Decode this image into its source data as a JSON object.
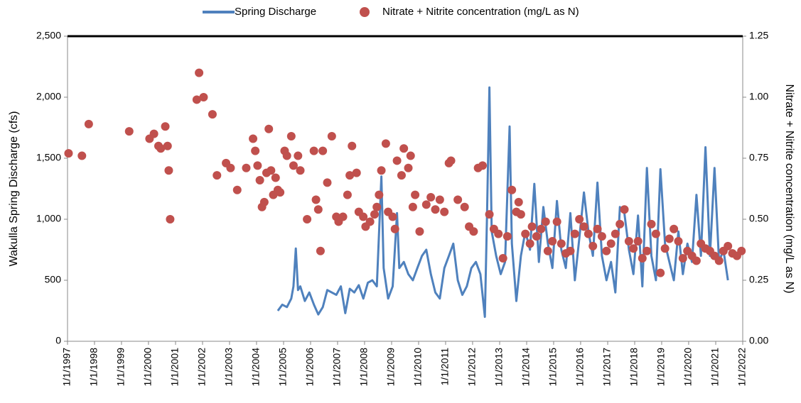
{
  "chart_data": {
    "type": "line",
    "y_label": "Wakulla Spring Discharge (cfs)",
    "y2_label": "Nitrate + Nitrite concentration (mg/L as N)",
    "xlim": [
      "1997-01-01",
      "2022-01-01"
    ],
    "xticks": [
      {
        "value": "1997-01-01",
        "label": "1/1/1997"
      },
      {
        "value": "1998-01-01",
        "label": "1/1/1998"
      },
      {
        "value": "1999-01-01",
        "label": "1/1/1999"
      },
      {
        "value": "2000-01-01",
        "label": "1/1/2000"
      },
      {
        "value": "2001-01-01",
        "label": "1/1/2001"
      },
      {
        "value": "2002-01-01",
        "label": "1/1/2002"
      },
      {
        "value": "2003-01-01",
        "label": "1/1/2003"
      },
      {
        "value": "2004-01-01",
        "label": "1/1/2004"
      },
      {
        "value": "2005-01-01",
        "label": "1/1/2005"
      },
      {
        "value": "2006-01-01",
        "label": "1/1/2006"
      },
      {
        "value": "2007-01-01",
        "label": "1/1/2007"
      },
      {
        "value": "2008-01-01",
        "label": "1/1/2008"
      },
      {
        "value": "2009-01-01",
        "label": "1/1/2009"
      },
      {
        "value": "2010-01-01",
        "label": "1/1/2010"
      },
      {
        "value": "2011-01-01",
        "label": "1/1/2011"
      },
      {
        "value": "2012-01-01",
        "label": "1/1/2012"
      },
      {
        "value": "2013-01-01",
        "label": "1/1/2013"
      },
      {
        "value": "2014-01-01",
        "label": "1/1/2014"
      },
      {
        "value": "2015-01-01",
        "label": "1/1/2015"
      },
      {
        "value": "2016-01-01",
        "label": "1/1/2016"
      },
      {
        "value": "2017-01-01",
        "label": "1/1/2017"
      },
      {
        "value": "2018-01-01",
        "label": "1/1/2018"
      },
      {
        "value": "2019-01-01",
        "label": "1/1/2019"
      },
      {
        "value": "2020-01-01",
        "label": "1/1/2020"
      },
      {
        "value": "2021-01-01",
        "label": "1/1/2021"
      },
      {
        "value": "2022-01-01",
        "label": "1/1/2022"
      }
    ],
    "ylim": [
      0,
      2500
    ],
    "yticks": [
      0,
      500,
      {
        "value": 1000,
        "label": "1,000"
      },
      {
        "value": 1500,
        "label": "1,500"
      },
      {
        "value": 2000,
        "label": "2,000"
      },
      {
        "value": 2500,
        "label": "2,500"
      }
    ],
    "y2lim": [
      0,
      1.25
    ],
    "y2ticks": [
      {
        "value": 0,
        "label": "0.00"
      },
      {
        "value": 0.25,
        "label": "0.25"
      },
      {
        "value": 0.5,
        "label": "0.50"
      },
      {
        "value": 0.75,
        "label": "0.75"
      },
      {
        "value": 1,
        "label": "1.00"
      },
      {
        "value": 1.25,
        "label": "1.25"
      }
    ],
    "grid": false,
    "series": [
      {
        "name": "Spring Discharge",
        "color": "#4f81bd",
        "type": "line",
        "x": [
          "2004-10-15",
          "2004-12-15",
          "2005-02-15",
          "2005-04-15",
          "2005-05-15",
          "2005-06-15",
          "2005-07-15",
          "2005-08-15",
          "2005-10-15",
          "2005-12-15",
          "2006-02-15",
          "2006-04-15",
          "2006-06-15",
          "2006-08-15",
          "2006-10-15",
          "2006-12-15",
          "2007-02-15",
          "2007-04-15",
          "2007-06-15",
          "2007-08-15",
          "2007-10-15",
          "2007-12-15",
          "2008-02-15",
          "2008-04-15",
          "2008-06-15",
          "2008-08-15",
          "2008-09-15",
          "2008-11-15",
          "2009-01-15",
          "2009-03-15",
          "2009-04-15",
          "2009-06-15",
          "2009-08-15",
          "2009-10-15",
          "2009-12-15",
          "2010-02-15",
          "2010-04-15",
          "2010-06-15",
          "2010-08-15",
          "2010-10-15",
          "2010-12-15",
          "2011-02-15",
          "2011-04-15",
          "2011-06-15",
          "2011-08-15",
          "2011-10-15",
          "2011-12-15",
          "2012-02-15",
          "2012-04-15",
          "2012-06-15",
          "2012-07-15",
          "2012-08-15",
          "2012-09-15",
          "2012-11-15",
          "2013-01-15",
          "2013-03-15",
          "2013-05-15",
          "2013-06-15",
          "2013-08-15",
          "2013-10-15",
          "2013-12-15",
          "2014-02-15",
          "2014-04-15",
          "2014-06-15",
          "2014-08-15",
          "2014-10-15",
          "2014-12-15",
          "2015-02-15",
          "2015-04-15",
          "2015-06-15",
          "2015-08-15",
          "2015-10-15",
          "2015-12-15",
          "2016-02-15",
          "2016-04-15",
          "2016-06-15",
          "2016-08-15",
          "2016-10-15",
          "2016-12-15",
          "2017-02-15",
          "2017-04-15",
          "2017-06-15",
          "2017-08-15",
          "2017-10-15",
          "2017-12-15",
          "2018-02-15",
          "2018-04-15",
          "2018-06-15",
          "2018-08-15",
          "2018-10-15",
          "2018-12-15",
          "2019-02-15",
          "2019-04-15",
          "2019-06-15",
          "2019-08-15",
          "2019-10-15",
          "2019-12-15",
          "2020-02-15",
          "2020-04-15",
          "2020-06-15",
          "2020-08-15",
          "2020-10-15",
          "2020-12-15",
          "2021-02-15",
          "2021-04-15",
          "2021-06-15"
        ],
        "values": [
          250,
          300,
          280,
          350,
          450,
          760,
          420,
          450,
          330,
          400,
          300,
          220,
          280,
          420,
          400,
          380,
          450,
          230,
          430,
          400,
          460,
          350,
          480,
          500,
          450,
          1350,
          600,
          350,
          450,
          1050,
          600,
          650,
          550,
          500,
          600,
          700,
          750,
          550,
          400,
          350,
          600,
          700,
          800,
          500,
          380,
          450,
          600,
          650,
          550,
          200,
          1050,
          2080,
          900,
          700,
          550,
          650,
          1760,
          800,
          330,
          700,
          900,
          750,
          1290,
          650,
          1100,
          800,
          600,
          1150,
          750,
          600,
          1050,
          500,
          850,
          1220,
          900,
          700,
          1300,
          700,
          500,
          650,
          400,
          1100,
          1050,
          750,
          550,
          1030,
          450,
          1420,
          700,
          500,
          1410,
          800,
          650,
          500,
          900,
          550,
          800,
          650,
          1200,
          700,
          1590,
          700,
          1420,
          650,
          750,
          500
        ]
      },
      {
        "name": "Nitrate + Nitrite concentration (mg/L as N)",
        "color": "#c0504d",
        "type": "scatter",
        "axis": "y2",
        "x": [
          "1997-01-15",
          "1997-07-15",
          "1997-10-15",
          "1999-04-15",
          "2000-01-15",
          "2000-03-15",
          "2000-05-15",
          "2000-06-15",
          "2000-08-15",
          "2000-09-15",
          "2000-10-01",
          "2000-10-20",
          "2001-10-15",
          "2001-11-15",
          "2002-01-15",
          "2002-05-15",
          "2002-07-15",
          "2002-11-15",
          "2003-01-15",
          "2003-04-15",
          "2003-08-15",
          "2003-11-15",
          "2003-12-15",
          "2004-01-15",
          "2004-02-15",
          "2004-03-15",
          "2004-04-15",
          "2004-05-15",
          "2004-06-15",
          "2004-07-15",
          "2004-08-15",
          "2004-09-15",
          "2004-10-15",
          "2004-11-15",
          "2005-01-15",
          "2005-02-15",
          "2005-04-15",
          "2005-05-15",
          "2005-07-15",
          "2005-08-15",
          "2005-11-15",
          "2006-02-15",
          "2006-03-15",
          "2006-04-15",
          "2006-05-15",
          "2006-06-15",
          "2006-08-15",
          "2006-10-15",
          "2006-12-15",
          "2007-01-15",
          "2007-03-15",
          "2007-05-15",
          "2007-06-15",
          "2007-07-15",
          "2007-09-15",
          "2007-10-15",
          "2007-12-15",
          "2008-01-15",
          "2008-03-15",
          "2008-05-15",
          "2008-06-15",
          "2008-07-15",
          "2008-08-15",
          "2008-10-15",
          "2008-11-15",
          "2009-01-15",
          "2009-02-15",
          "2009-03-15",
          "2009-05-15",
          "2009-06-15",
          "2009-08-15",
          "2009-09-15",
          "2009-10-15",
          "2009-11-15",
          "2010-01-15",
          "2010-04-15",
          "2010-06-15",
          "2010-08-15",
          "2010-10-15",
          "2010-12-15",
          "2011-02-15",
          "2011-03-15",
          "2011-06-15",
          "2011-09-15",
          "2011-11-15",
          "2012-01-15",
          "2012-03-15",
          "2012-05-15",
          "2012-08-15",
          "2012-10-15",
          "2012-12-15",
          "2013-02-15",
          "2013-04-15",
          "2013-06-15",
          "2013-08-15",
          "2013-09-15",
          "2013-10-15",
          "2013-12-15",
          "2014-02-15",
          "2014-03-15",
          "2014-05-15",
          "2014-07-15",
          "2014-09-15",
          "2014-10-15",
          "2014-12-15",
          "2015-02-15",
          "2015-04-15",
          "2015-06-15",
          "2015-08-15",
          "2015-10-15",
          "2015-12-15",
          "2016-02-15",
          "2016-04-15",
          "2016-06-15",
          "2016-08-15",
          "2016-10-15",
          "2016-12-15",
          "2017-02-15",
          "2017-04-15",
          "2017-06-15",
          "2017-08-15",
          "2017-10-15",
          "2017-12-15",
          "2018-02-15",
          "2018-04-15",
          "2018-06-15",
          "2018-08-15",
          "2018-10-15",
          "2018-12-15",
          "2019-02-15",
          "2019-04-15",
          "2019-06-15",
          "2019-08-15",
          "2019-10-15",
          "2019-12-15",
          "2020-02-15",
          "2020-04-15",
          "2020-06-15",
          "2020-08-15",
          "2020-10-15",
          "2020-12-15",
          "2021-02-15",
          "2021-04-15",
          "2021-06-15",
          "2021-08-15",
          "2021-10-15",
          "2021-12-15"
        ],
        "values": [
          0.77,
          0.76,
          0.89,
          0.86,
          0.83,
          0.85,
          0.8,
          0.79,
          0.88,
          0.8,
          0.7,
          0.5,
          0.99,
          1.1,
          1.0,
          0.93,
          0.68,
          0.73,
          0.71,
          0.62,
          0.71,
          0.83,
          0.78,
          0.72,
          0.66,
          0.55,
          0.57,
          0.69,
          0.87,
          0.7,
          0.6,
          0.67,
          0.62,
          0.61,
          0.78,
          0.76,
          0.84,
          0.72,
          0.76,
          0.7,
          0.5,
          0.78,
          0.58,
          0.54,
          0.37,
          0.78,
          0.65,
          0.84,
          0.51,
          0.49,
          0.51,
          0.6,
          0.68,
          0.8,
          0.69,
          0.53,
          0.51,
          0.47,
          0.49,
          0.52,
          0.55,
          0.6,
          0.7,
          0.81,
          0.53,
          0.51,
          0.46,
          0.74,
          0.68,
          0.79,
          0.71,
          0.76,
          0.55,
          0.6,
          0.45,
          0.56,
          0.59,
          0.54,
          0.58,
          0.53,
          0.73,
          0.74,
          0.58,
          0.55,
          0.47,
          0.45,
          0.71,
          0.72,
          0.52,
          0.46,
          0.44,
          0.34,
          0.43,
          0.62,
          0.53,
          0.57,
          0.52,
          0.44,
          0.4,
          0.47,
          0.43,
          0.46,
          0.49,
          0.37,
          0.41,
          0.49,
          0.4,
          0.36,
          0.37,
          0.44,
          0.5,
          0.47,
          0.44,
          0.39,
          0.46,
          0.43,
          0.37,
          0.4,
          0.44,
          0.48,
          0.54,
          0.41,
          0.38,
          0.41,
          0.34,
          0.37,
          0.48,
          0.44,
          0.28,
          0.38,
          0.42,
          0.46,
          0.41,
          0.34,
          0.37,
          0.35,
          0.33,
          0.4,
          0.38,
          0.37,
          0.35,
          0.33,
          0.37,
          0.39,
          0.36,
          0.35,
          0.37
        ]
      }
    ]
  }
}
